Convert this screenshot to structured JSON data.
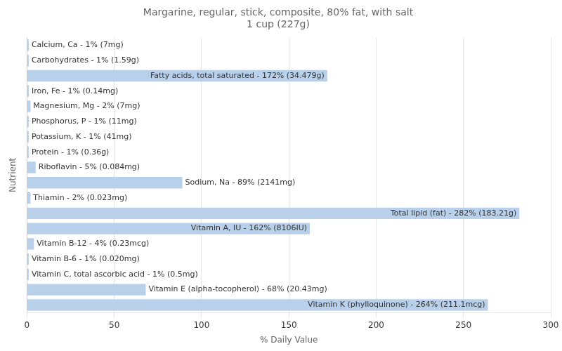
{
  "chart_data": {
    "type": "bar",
    "orientation": "horizontal",
    "title": "Margarine, regular, stick, composite, 80% fat, with salt\n1 cup (227g)",
    "xlabel": "% Daily Value",
    "ylabel": "Nutrient",
    "categories": [
      "Calcium, Ca - 1% (7mg)",
      "Carbohydrates - 1% (1.59g)",
      "Fatty acids, total saturated - 172% (34.479g)",
      "Iron, Fe - 1% (0.14mg)",
      "Magnesium, Mg - 2% (7mg)",
      "Phosphorus, P - 1% (11mg)",
      "Potassium, K - 1% (41mg)",
      "Protein - 1% (0.36g)",
      "Riboflavin - 5% (0.084mg)",
      "Sodium, Na - 89% (2141mg)",
      "Thiamin - 2% (0.023mg)",
      "Total lipid (fat) - 282% (183.21g)",
      "Vitamin A, IU - 162% (8106IU)",
      "Vitamin B-12 - 4% (0.23mcg)",
      "Vitamin B-6 - 1% (0.020mg)",
      "Vitamin C, total ascorbic acid - 1% (0.5mg)",
      "Vitamin E (alpha-tocopherol) - 68% (20.43mg)",
      "Vitamin K (phylloquinone) - 264% (211.1mcg)"
    ],
    "values": [
      1,
      1,
      172,
      1,
      2,
      1,
      1,
      1,
      5,
      89,
      2,
      282,
      162,
      4,
      1,
      1,
      68,
      264
    ],
    "color": "#b8d0ea",
    "xlim": [
      0,
      300
    ],
    "xticks": [
      0,
      50,
      100,
      150,
      200,
      250,
      300
    ],
    "grid": true,
    "tick_labels": "x"
  }
}
